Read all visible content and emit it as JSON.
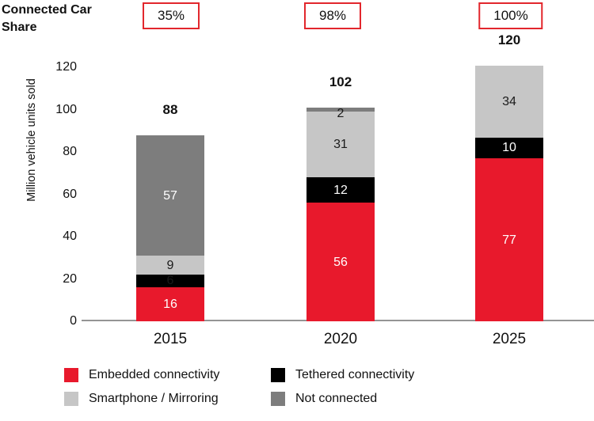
{
  "header": {
    "share_label": "Connected Car Share",
    "share_values": [
      "35%",
      "98%",
      "100%"
    ]
  },
  "chart_data": {
    "type": "bar",
    "stacked": true,
    "ylabel": "Million vehicle units sold",
    "ylim": [
      0,
      120
    ],
    "yticks": [
      0,
      20,
      40,
      60,
      80,
      100,
      120
    ],
    "categories": [
      "2015",
      "2020",
      "2025"
    ],
    "totals": [
      88,
      102,
      120
    ],
    "connected_car_share": [
      "35%",
      "98%",
      "100%"
    ],
    "grid": false,
    "legend_position": "bottom",
    "series": [
      {
        "name": "Embedded connectivity",
        "color": "#e8192c",
        "label_color": "#ffffff",
        "values": [
          16,
          56,
          77
        ]
      },
      {
        "name": "Tethered connectivity",
        "color": "#000000",
        "label_color": "#ffffff",
        "values": [
          6,
          12,
          10
        ]
      },
      {
        "name": "Smartphone / Mirroring",
        "color": "#c6c6c6",
        "label_color": "#1a1a1a",
        "values": [
          9,
          31,
          34
        ]
      },
      {
        "name": "Not connected",
        "color": "#7d7d7d",
        "label_color": "#ffffff",
        "values": [
          57,
          2,
          0
        ]
      }
    ],
    "colors": {
      "accent_red": "#e8192c",
      "badge_border": "#e2262c",
      "axis_line": "#949494"
    }
  }
}
